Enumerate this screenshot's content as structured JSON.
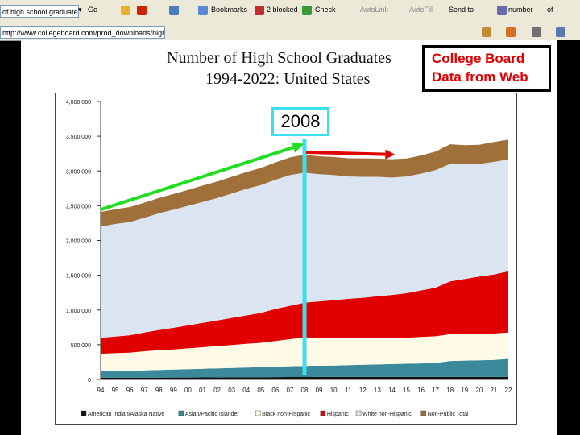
{
  "browser": {
    "search_value": "of high school graduates",
    "go_label": "Go",
    "bookmarks_label": "Bookmarks",
    "blocked_label": "2 blocked",
    "check_label": "Check",
    "autolink_label": "AutoLink",
    "autofill_label": "AutoFill",
    "sendto_label": "Send to",
    "number_label": "number",
    "of_label": "of",
    "address": "http://www.collegeboard.com/prod_downloads/highe..."
  },
  "slide": {
    "title_line1": "Number of High School Graduates",
    "title_line2": "1994-2022:  United States",
    "callout_line1": "College Board",
    "callout_line2": "Data from Web",
    "highlight_year": "2008"
  },
  "colors": {
    "american_indian": "#111111",
    "asian": "#3a8a9c",
    "black": "#fffbe6",
    "hispanic": "#e00000",
    "white": "#dbe5f1",
    "nonpublic": "#a0703a",
    "green_arrow": "#22dd22",
    "red_arrow": "#e00000",
    "cyan_marker": "#3ae0f0"
  },
  "chart_data": {
    "type": "area",
    "stacked": true,
    "categories": [
      "94",
      "95",
      "96",
      "97",
      "98",
      "99",
      "00",
      "01",
      "02",
      "03",
      "04",
      "05",
      "06",
      "07",
      "08",
      "09",
      "10",
      "11",
      "12",
      "13",
      "14",
      "15",
      "16",
      "17",
      "18",
      "19",
      "20",
      "21",
      "22"
    ],
    "y_ticks": [
      "0",
      "500,000",
      "1,000,000",
      "1,500,000",
      "2,000,000",
      "2,500,000",
      "3,000,000",
      "3,500,000",
      "4,000,000"
    ],
    "ylim": [
      0,
      4000000
    ],
    "series": [
      {
        "name": "American Indian/Alaska Native",
        "values": [
          25000,
          25000,
          26000,
          26000,
          27000,
          28000,
          28000,
          29000,
          30000,
          31000,
          32000,
          33000,
          34000,
          35000,
          35000,
          36000,
          36000,
          36000,
          36000,
          36000,
          36000,
          36000,
          36000,
          36000,
          36000,
          36000,
          36000,
          36000,
          36000
        ]
      },
      {
        "name": "Asian/Pacific Islander",
        "values": [
          95000,
          98000,
          100000,
          105000,
          110000,
          115000,
          120000,
          125000,
          130000,
          135000,
          140000,
          145000,
          150000,
          155000,
          160000,
          162000,
          165000,
          170000,
          175000,
          180000,
          185000,
          190000,
          195000,
          200000,
          230000,
          235000,
          240000,
          245000,
          260000
        ]
      },
      {
        "name": "Black non-Hispanic",
        "values": [
          250000,
          255000,
          260000,
          275000,
          285000,
          290000,
          300000,
          310000,
          320000,
          330000,
          340000,
          350000,
          370000,
          390000,
          410000,
          405000,
          400000,
          395000,
          385000,
          380000,
          375000,
          375000,
          380000,
          385000,
          385000,
          385000,
          385000,
          380000,
          380000
        ]
      },
      {
        "name": "Hispanic",
        "values": [
          230000,
          240000,
          250000,
          270000,
          290000,
          310000,
          330000,
          350000,
          370000,
          390000,
          410000,
          430000,
          460000,
          480000,
          500000,
          520000,
          540000,
          560000,
          580000,
          600000,
          620000,
          640000,
          670000,
          700000,
          760000,
          790000,
          820000,
          850000,
          880000
        ]
      },
      {
        "name": "White non-Hispanic",
        "values": [
          1600000,
          1620000,
          1630000,
          1650000,
          1680000,
          1700000,
          1720000,
          1740000,
          1760000,
          1790000,
          1820000,
          1840000,
          1860000,
          1880000,
          1870000,
          1830000,
          1800000,
          1760000,
          1740000,
          1720000,
          1690000,
          1680000,
          1680000,
          1690000,
          1690000,
          1650000,
          1620000,
          1620000,
          1610000
        ]
      },
      {
        "name": "Non-Public Total",
        "values": [
          210000,
          212000,
          215000,
          218000,
          220000,
          225000,
          230000,
          235000,
          238000,
          240000,
          242000,
          245000,
          250000,
          255000,
          260000,
          257000,
          260000,
          262000,
          265000,
          262000,
          264000,
          258000,
          262000,
          268000,
          283000,
          275000,
          275000,
          285000,
          284000
        ]
      }
    ],
    "legend_position": "bottom",
    "grid": false
  }
}
